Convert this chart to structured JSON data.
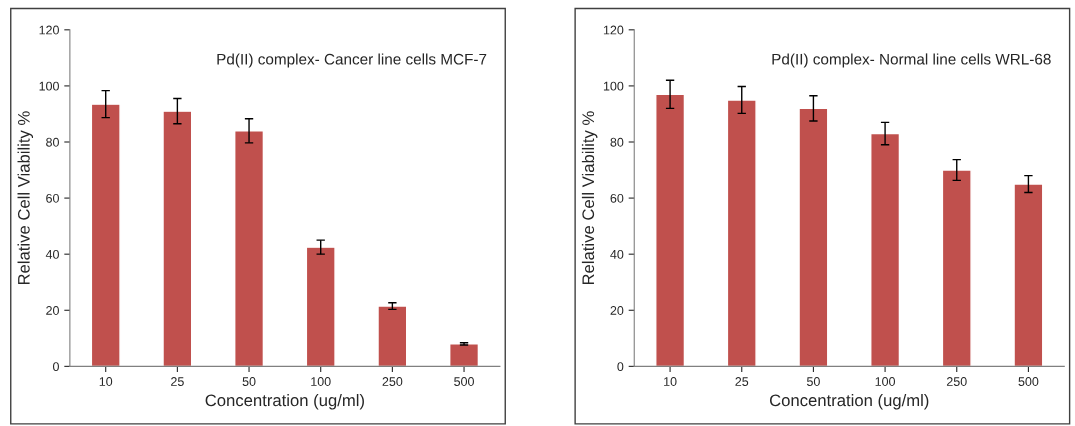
{
  "chart_data": [
    {
      "type": "bar",
      "title": "Pd(II) complex- Cancer line cells MCF-7",
      "xlabel": "Concentration (ug/ml)",
      "ylabel": "Relative Cell Viability %",
      "categories": [
        "10",
        "25",
        "50",
        "100",
        "250",
        "500"
      ],
      "series": [
        {
          "color": "#c0504d",
          "values": [
            93.5,
            91,
            84,
            42.5,
            21.5,
            8
          ],
          "errors": [
            4.8,
            4.5,
            4.3,
            2.5,
            1.2,
            0.4
          ]
        }
      ],
      "ylim": [
        0,
        120
      ],
      "yticks": [
        0,
        20,
        40,
        60,
        80,
        100,
        120
      ],
      "grid": false,
      "legend": false
    },
    {
      "type": "bar",
      "title": "Pd(II) complex- Normal line cells WRL-68",
      "xlabel": "Concentration (ug/ml)",
      "ylabel": "Relative Cell Viability %",
      "categories": [
        "10",
        "25",
        "50",
        "100",
        "250",
        "500"
      ],
      "series": [
        {
          "color": "#c0504d",
          "values": [
            97,
            95,
            92,
            83,
            70,
            65
          ],
          "errors": [
            5,
            4.8,
            4.5,
            4,
            3.7,
            3
          ]
        }
      ],
      "ylim": [
        0,
        120
      ],
      "yticks": [
        0,
        20,
        40,
        60,
        80,
        100,
        120
      ],
      "grid": false,
      "legend": false
    }
  ]
}
